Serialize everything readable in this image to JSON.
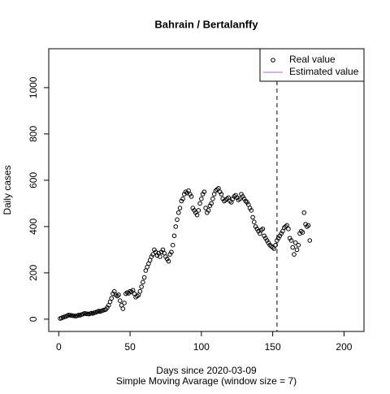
{
  "chart_data": {
    "type": "scatter",
    "title": "Bahrain / Bertalanffy",
    "xlabel": "Days since 2020-03-09",
    "subtitle": "Simple Moving Avarage (window size = 7)",
    "ylabel": "Daily cases",
    "xlim": [
      -7,
      214
    ],
    "ylim": [
      -53,
      1168
    ],
    "xticks": [
      0,
      50,
      100,
      150,
      200
    ],
    "yticks": [
      0,
      200,
      400,
      600,
      800,
      1000
    ],
    "vline": 153,
    "legend_position": "topright",
    "x": [
      1,
      2,
      3,
      4,
      5,
      6,
      7,
      8,
      9,
      10,
      11,
      12,
      13,
      14,
      15,
      16,
      17,
      18,
      19,
      20,
      21,
      22,
      23,
      24,
      25,
      26,
      27,
      28,
      29,
      30,
      31,
      32,
      33,
      34,
      35,
      36,
      37,
      38,
      39,
      40,
      41,
      42,
      43,
      44,
      45,
      46,
      47,
      48,
      49,
      50,
      51,
      52,
      53,
      54,
      55,
      56,
      57,
      58,
      59,
      60,
      61,
      62,
      63,
      64,
      65,
      66,
      67,
      68,
      69,
      70,
      71,
      72,
      73,
      74,
      75,
      76,
      77,
      78,
      79,
      80,
      81,
      82,
      83,
      84,
      85,
      86,
      87,
      88,
      89,
      90,
      91,
      92,
      93,
      94,
      95,
      96,
      97,
      98,
      99,
      100,
      101,
      102,
      103,
      104,
      105,
      106,
      107,
      108,
      109,
      110,
      111,
      112,
      113,
      114,
      115,
      116,
      117,
      118,
      119,
      120,
      121,
      122,
      123,
      124,
      125,
      126,
      127,
      128,
      129,
      130,
      131,
      132,
      133,
      134,
      135,
      136,
      137,
      138,
      139,
      140,
      141,
      142,
      143,
      144,
      145,
      146,
      147,
      148,
      149,
      150,
      151,
      152,
      153,
      154,
      155,
      156,
      157,
      158,
      159,
      160,
      161,
      162,
      163,
      164,
      165,
      166,
      167,
      168,
      169,
      170,
      171,
      172,
      173,
      174,
      175,
      176
    ],
    "series": [
      {
        "name": "Real value",
        "color": "#000000",
        "marker": "circle",
        "values": [
          3,
          5,
          8,
          10,
          12,
          15,
          18,
          17,
          16,
          15,
          14,
          13,
          15,
          18,
          17,
          20,
          22,
          25,
          24,
          23,
          22,
          24,
          26,
          25,
          28,
          30,
          32,
          35,
          33,
          36,
          38,
          40,
          42,
          50,
          60,
          75,
          90,
          110,
          120,
          105,
          100,
          105,
          80,
          60,
          45,
          70,
          110,
          115,
          112,
          120,
          118,
          125,
          110,
          95,
          100,
          105,
          120,
          140,
          160,
          180,
          210,
          225,
          240,
          255,
          270,
          280,
          300,
          290,
          275,
          285,
          270,
          290,
          300,
          285,
          270,
          260,
          250,
          280,
          290,
          320,
          360,
          400,
          430,
          460,
          480,
          510,
          520,
          540,
          550,
          545,
          555,
          540,
          530,
          480,
          470,
          460,
          450,
          470,
          500,
          520,
          540,
          550,
          480,
          460,
          470,
          490,
          500,
          520,
          540,
          555,
          560,
          565,
          550,
          540,
          520,
          510,
          515,
          520,
          525,
          510,
          505,
          520,
          530,
          535,
          525,
          515,
          520,
          540,
          530,
          520,
          510,
          505,
          495,
          480,
          470,
          440,
          420,
          400,
          390,
          380,
          370,
          385,
          390,
          360,
          350,
          340,
          330,
          320,
          315,
          310,
          305,
          320,
          340,
          350,
          360,
          370,
          380,
          395,
          400,
          405,
          390,
          350,
          340,
          310,
          280,
          330,
          300,
          320,
          370,
          380,
          375,
          460,
          410,
          400,
          405,
          340
        ]
      },
      {
        "name": "Estimated value",
        "color": "#9e6fa5",
        "marker": "line",
        "values": []
      }
    ]
  }
}
